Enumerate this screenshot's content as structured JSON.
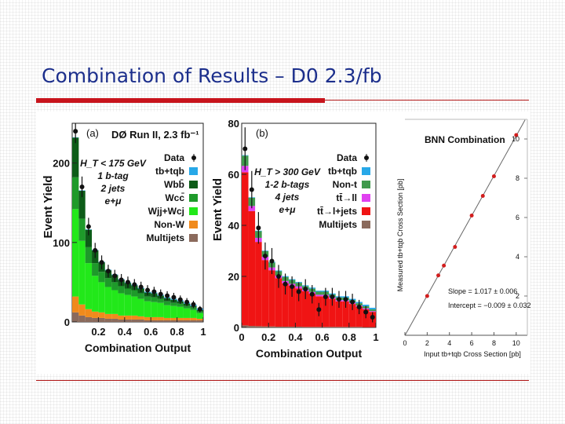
{
  "slide": {
    "title": "Combination of Results – D0 2.3/fb",
    "colors": {
      "title": "#1c2f8c",
      "rule": "#c8141c"
    }
  },
  "chart_data": [
    {
      "id": "a",
      "type": "bar",
      "stacked": true,
      "panel_label": "(a)",
      "title": "DØ Run II, 2.3 fb⁻¹",
      "xlabel": "Combination Output",
      "ylabel": "Event Yield",
      "xlim": [
        0,
        1
      ],
      "ylim": [
        0,
        250
      ],
      "xticks": [
        "0.2",
        "0.4",
        "0.6",
        "0.8",
        "1"
      ],
      "yticks": [
        "0",
        "100",
        "200"
      ],
      "bin_width": 0.05,
      "selection": [
        "H_T < 175 GeV",
        "1 b-tag",
        "2 jets",
        "e+μ"
      ],
      "x": [
        0.05,
        0.1,
        0.15,
        0.2,
        0.25,
        0.3,
        0.35,
        0.4,
        0.45,
        0.5,
        0.55,
        0.6,
        0.65,
        0.7,
        0.75,
        0.8,
        0.85,
        0.9,
        0.95,
        1.0
      ],
      "series": [
        {
          "name": "Multijets",
          "color": "#8b6a5c",
          "values": [
            12,
            8,
            6,
            5,
            5,
            4,
            4,
            3,
            3,
            3,
            3,
            2,
            2,
            2,
            2,
            2,
            2,
            2,
            2,
            2
          ]
        },
        {
          "name": "Non-W",
          "color": "#f08a1c",
          "values": [
            20,
            14,
            10,
            8,
            7,
            6,
            6,
            5,
            5,
            5,
            4,
            4,
            4,
            4,
            3,
            3,
            3,
            3,
            3,
            2
          ]
        },
        {
          "name": "Wjj+Wcj",
          "color": "#22e81a",
          "values": [
            110,
            80,
            58,
            45,
            38,
            34,
            30,
            28,
            26,
            24,
            22,
            20,
            19,
            18,
            16,
            15,
            14,
            12,
            10,
            7
          ]
        },
        {
          "name": "Wcc̄",
          "color": "#1e9a2a",
          "values": [
            40,
            28,
            20,
            16,
            13,
            11,
            10,
            9,
            8,
            8,
            7,
            6,
            6,
            5,
            5,
            4,
            4,
            3,
            3,
            2
          ]
        },
        {
          "name": "Wbb̄",
          "color": "#0d5c18",
          "values": [
            50,
            35,
            22,
            16,
            12,
            10,
            9,
            8,
            7,
            6,
            6,
            5,
            5,
            4,
            4,
            4,
            3,
            3,
            2,
            2
          ]
        },
        {
          "name": "tb+tqb",
          "color": "#27a8e8",
          "values": [
            0.4,
            0.5,
            0.5,
            0.6,
            0.6,
            0.7,
            0.7,
            0.8,
            0.8,
            0.9,
            0.9,
            1.0,
            1.0,
            1.1,
            1.1,
            1.2,
            1.3,
            1.4,
            1.6,
            2.0
          ]
        }
      ],
      "data": {
        "name": "Data",
        "values": [
          240,
          170,
          120,
          90,
          75,
          64,
          58,
          53,
          50,
          47,
          44,
          40,
          38,
          35,
          33,
          31,
          28,
          25,
          22,
          16
        ],
        "errors": [
          15,
          13,
          11,
          9.5,
          8.7,
          8,
          7.6,
          7.3,
          7.1,
          6.9,
          6.6,
          6.3,
          6.2,
          5.9,
          5.7,
          5.6,
          5.3,
          5,
          4.7,
          4
        ]
      },
      "legend": [
        {
          "label": "Data",
          "kind": "marker",
          "color": "#111111"
        },
        {
          "label": "tb+tqb",
          "kind": "box",
          "color": "#27a8e8"
        },
        {
          "label": "Wbb̄",
          "kind": "box",
          "color": "#0d5c18"
        },
        {
          "label": "Wcc̄",
          "kind": "box",
          "color": "#1e9a2a"
        },
        {
          "label": "Wjj+Wcj",
          "kind": "box",
          "color": "#22e81a"
        },
        {
          "label": "Non-W",
          "kind": "box",
          "color": "#f08a1c"
        },
        {
          "label": "Multijets",
          "kind": "box",
          "color": "#8b6a5c"
        }
      ],
      "legend_position": "top-right"
    },
    {
      "id": "b",
      "type": "bar",
      "stacked": true,
      "panel_label": "(b)",
      "xlabel": "Combination Output",
      "ylabel": "Event Yield",
      "xlim": [
        0,
        1
      ],
      "ylim": [
        0,
        80
      ],
      "xticks": [
        "0",
        "0.2",
        "0.4",
        "0.6",
        "0.8",
        "1"
      ],
      "yticks": [
        "0",
        "20",
        "40",
        "60",
        "80"
      ],
      "bin_width": 0.05,
      "selection": [
        "H_T > 300 GeV",
        "1-2 b-tags",
        "4 jets",
        "e+μ"
      ],
      "x": [
        0.05,
        0.1,
        0.15,
        0.2,
        0.25,
        0.3,
        0.35,
        0.4,
        0.45,
        0.5,
        0.55,
        0.6,
        0.65,
        0.7,
        0.75,
        0.8,
        0.85,
        0.9,
        0.95,
        1.0
      ],
      "series": [
        {
          "name": "Multijets",
          "color": "#8b6a5c",
          "values": [
            0.8,
            0.6,
            0.5,
            0.4,
            0.4,
            0.3,
            0.3,
            0.3,
            0.3,
            0.2,
            0.2,
            0.2,
            0.2,
            0.2,
            0.2,
            0.2,
            0.2,
            0.2,
            0.1,
            0.1
          ]
        },
        {
          "name": "tt̄→l+jets",
          "color": "#f01414",
          "values": [
            60,
            45,
            33,
            26,
            22,
            19,
            17,
            16,
            15,
            14,
            13,
            12,
            12,
            11,
            10,
            10,
            9,
            8,
            7,
            6
          ]
        },
        {
          "name": "tt̄→ll",
          "color": "#e040f0",
          "values": [
            2.5,
            2,
            1.6,
            1.3,
            1.1,
            1,
            0.9,
            0.8,
            0.8,
            0.7,
            0.7,
            0.6,
            0.6,
            0.6,
            0.5,
            0.5,
            0.5,
            0.4,
            0.4,
            0.3
          ]
        },
        {
          "name": "Non-t",
          "color": "#3f9a4c",
          "values": [
            4,
            3.2,
            2.6,
            2.2,
            1.9,
            1.7,
            1.6,
            1.5,
            1.4,
            1.3,
            1.3,
            1.2,
            1.2,
            1.1,
            1.1,
            1,
            1,
            0.9,
            0.8,
            0.7
          ]
        },
        {
          "name": "tb+tqb",
          "color": "#27a8e8",
          "values": [
            0.2,
            0.2,
            0.2,
            0.2,
            0.3,
            0.3,
            0.3,
            0.3,
            0.3,
            0.3,
            0.4,
            0.4,
            0.4,
            0.4,
            0.4,
            0.5,
            0.5,
            0.5,
            0.6,
            0.6
          ]
        }
      ],
      "data": {
        "name": "Data",
        "values": [
          70,
          54,
          39,
          28,
          26,
          20,
          17,
          16,
          14,
          15,
          13,
          7,
          12,
          12,
          11,
          11,
          10,
          8,
          6,
          4
        ],
        "errors": [
          8.4,
          7.3,
          6.2,
          5.3,
          5.1,
          4.5,
          4.1,
          4,
          3.7,
          3.9,
          3.6,
          2.6,
          3.5,
          3.5,
          3.3,
          3.3,
          3.2,
          2.8,
          2.4,
          2
        ]
      },
      "legend": [
        {
          "label": "Data",
          "kind": "marker",
          "color": "#111111"
        },
        {
          "label": "tb+tqb",
          "kind": "box",
          "color": "#27a8e8"
        },
        {
          "label": "Non-t",
          "kind": "box",
          "color": "#3f9a4c"
        },
        {
          "label": "tt̄→ll",
          "kind": "box",
          "color": "#e040f0"
        },
        {
          "label": "tt̄→l+jets",
          "kind": "box",
          "color": "#f01414"
        },
        {
          "label": "Multijets",
          "kind": "box",
          "color": "#8b6a5c"
        }
      ],
      "legend_position": "top-right"
    },
    {
      "id": "c",
      "type": "scatter",
      "title": "BNN Combination",
      "xlabel": "Input tb+tqb Cross Section [pb]",
      "ylabel": "Measured tb+tqb Cross Section [pb]",
      "xlim": [
        0,
        11
      ],
      "ylim": [
        0,
        11
      ],
      "xticks": [
        "0",
        "2",
        "4",
        "6",
        "8",
        "10"
      ],
      "yticks": [
        "2",
        "4",
        "6",
        "8",
        "10"
      ],
      "x": [
        2,
        3,
        3.5,
        4.5,
        6,
        7,
        8,
        10
      ],
      "y": [
        2.0,
        3.05,
        3.55,
        4.5,
        6.1,
        7.1,
        8.1,
        10.2
      ],
      "fit": {
        "slope": 1.017,
        "intercept": -0.009
      },
      "annotations": [
        "Slope = 1.017 ± 0.006",
        "Intercept = −0.009 ± 0.032"
      ]
    }
  ]
}
